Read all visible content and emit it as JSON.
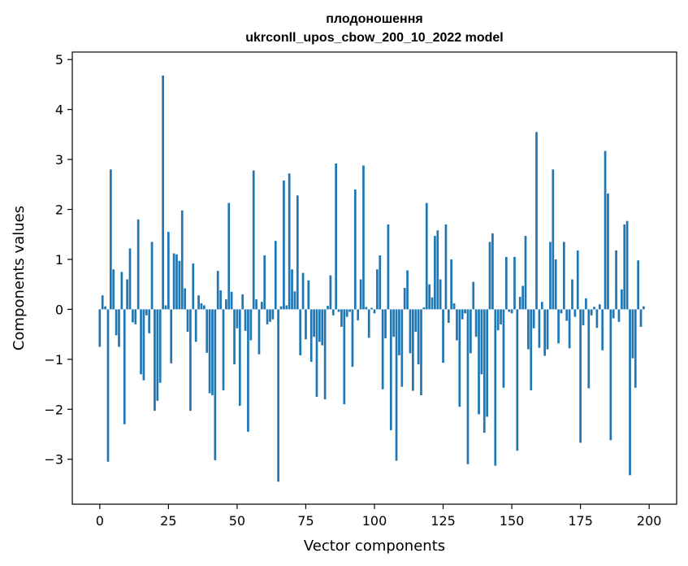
{
  "chart_data": {
    "type": "bar",
    "title_line1": "плодоношення",
    "title_line2": "ukrconll_upos_cbow_200_10_2022 model",
    "xlabel": "Vector components",
    "ylabel": "Components values",
    "xlim": [
      -10,
      210
    ],
    "ylim": [
      -3.9,
      5.15
    ],
    "xticks": [
      0,
      25,
      50,
      75,
      100,
      125,
      150,
      175,
      200
    ],
    "xtick_labels": [
      "0",
      "25",
      "50",
      "75",
      "100",
      "125",
      "150",
      "175",
      "200"
    ],
    "yticks": [
      -3,
      -2,
      -1,
      0,
      1,
      2,
      3,
      4,
      5
    ],
    "ytick_labels": [
      "−3",
      "−2",
      "−1",
      "0",
      "1",
      "2",
      "3",
      "4",
      "5"
    ],
    "grid": false,
    "bar_color": "#1f77b4",
    "values": [
      -0.75,
      0.28,
      0.06,
      -3.05,
      2.8,
      0.8,
      -0.52,
      -0.75,
      0.75,
      -2.3,
      0.6,
      1.22,
      -0.26,
      -0.3,
      1.8,
      -1.3,
      -1.42,
      -0.12,
      -0.48,
      1.35,
      -2.03,
      -1.83,
      -1.47,
      4.68,
      0.08,
      1.55,
      -1.08,
      1.12,
      1.1,
      0.97,
      1.98,
      0.42,
      -0.45,
      -2.03,
      0.92,
      -0.65,
      0.28,
      0.12,
      0.08,
      -0.87,
      -1.68,
      -1.72,
      -3.02,
      0.77,
      0.38,
      -1.62,
      0.2,
      2.13,
      0.35,
      -1.1,
      -0.38,
      -1.93,
      0.3,
      -0.43,
      -2.45,
      -0.62,
      2.78,
      0.2,
      -0.9,
      0.15,
      1.08,
      -0.3,
      -0.25,
      -0.2,
      1.37,
      -3.45,
      0.06,
      2.58,
      0.08,
      2.72,
      0.8,
      0.36,
      2.28,
      -0.92,
      0.73,
      -0.6,
      0.58,
      -1.05,
      -0.55,
      -1.75,
      -0.65,
      -0.72,
      -1.8,
      0.07,
      0.68,
      -0.12,
      2.92,
      -0.05,
      -0.35,
      -1.9,
      -0.15,
      -0.05,
      -1.15,
      2.4,
      -0.22,
      0.6,
      2.88,
      0.05,
      -0.57,
      0.03,
      -0.08,
      0.8,
      1.08,
      -1.6,
      -0.58,
      1.7,
      -2.42,
      -0.55,
      -3.03,
      -0.92,
      -1.55,
      0.43,
      0.78,
      -0.88,
      -1.63,
      -0.45,
      -1.1,
      -1.72,
      0.04,
      2.13,
      0.5,
      0.24,
      1.47,
      1.58,
      0.6,
      -1.07,
      1.7,
      -0.27,
      1.0,
      0.12,
      -0.62,
      -1.95,
      -0.2,
      -0.08,
      -3.1,
      -0.88,
      0.55,
      -0.55,
      -2.1,
      -1.3,
      -2.47,
      -2.15,
      1.35,
      1.52,
      -3.13,
      -0.42,
      -0.3,
      -1.57,
      1.05,
      -0.05,
      -0.08,
      1.05,
      -2.83,
      0.25,
      0.47,
      1.47,
      -0.8,
      -1.62,
      -0.38,
      3.55,
      -0.77,
      0.15,
      -0.93,
      -0.8,
      1.35,
      2.8,
      1.0,
      -0.68,
      -0.08,
      1.35,
      -0.23,
      -0.78,
      0.6,
      -0.15,
      1.18,
      -2.67,
      -0.32,
      0.22,
      -1.58,
      -0.12,
      0.05,
      -0.37,
      0.1,
      -0.82,
      3.17,
      2.32,
      -2.62,
      -0.18,
      1.18,
      -0.25,
      0.4,
      1.7,
      1.77,
      -3.32,
      -0.98,
      -1.57,
      0.98,
      -0.35,
      0.06
    ]
  }
}
